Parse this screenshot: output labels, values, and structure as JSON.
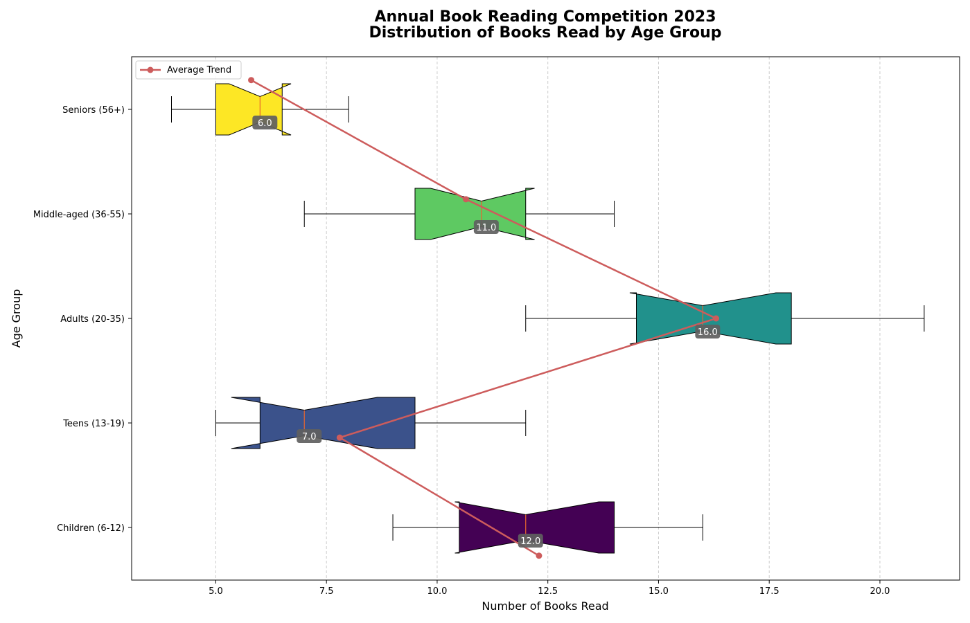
{
  "chart_data": {
    "type": "boxplot",
    "orientation": "horizontal",
    "notched": true,
    "title": "Annual Book Reading Competition 2023",
    "subtitle": "Distribution of Books Read by Age Group",
    "xlabel": "Number of Books Read",
    "ylabel": "Age Group",
    "xlim": [
      3.1,
      21.8
    ],
    "xticks": [
      5.0,
      7.5,
      10.0,
      12.5,
      15.0,
      17.5,
      20.0
    ],
    "xtick_labels": [
      "5.0",
      "7.5",
      "10.0",
      "12.5",
      "15.0",
      "17.5",
      "20.0"
    ],
    "grid": "x-dashed",
    "legend_placement": "top-left",
    "categories": [
      "Children (6-12)",
      "Teens (13-19)",
      "Adults (20-35)",
      "Middle-aged (36-55)",
      "Seniors (56+)"
    ],
    "boxes": [
      {
        "category": "Children (6-12)",
        "whisker_low": 9.0,
        "q1": 10.5,
        "median": 12.0,
        "q3": 14.0,
        "whisker_high": 16.0,
        "notch_low": 10.4,
        "notch_high": 13.65,
        "median_label": "12.0",
        "color": "#440154"
      },
      {
        "category": "Teens (13-19)",
        "whisker_low": 5.0,
        "q1": 6.0,
        "median": 7.0,
        "q3": 9.5,
        "whisker_high": 12.0,
        "notch_low": 5.35,
        "notch_high": 8.65,
        "median_label": "7.0",
        "color": "#3b528b"
      },
      {
        "category": "Adults (20-35)",
        "whisker_low": 12.0,
        "q1": 14.5,
        "median": 16.0,
        "q3": 18.0,
        "whisker_high": 21.0,
        "notch_low": 14.35,
        "notch_high": 17.65,
        "median_label": "16.0",
        "color": "#21918c"
      },
      {
        "category": "Middle-aged (36-55)",
        "whisker_low": 7.0,
        "q1": 9.5,
        "median": 11.0,
        "q3": 12.0,
        "whisker_high": 14.0,
        "notch_low": 9.85,
        "notch_high": 12.2,
        "median_label": "11.0",
        "color": "#5ec962"
      },
      {
        "category": "Seniors (56+)",
        "whisker_low": 4.0,
        "q1": 5.0,
        "median": 6.0,
        "q3": 6.5,
        "whisker_high": 8.0,
        "notch_low": 5.3,
        "notch_high": 6.7,
        "median_label": "6.0",
        "color": "#fde725"
      }
    ],
    "series": [
      {
        "name": "Average Trend",
        "color": "#cd5c5c",
        "values": [
          12.3,
          7.8,
          16.3,
          10.65,
          5.8
        ],
        "offsets": [
          -0.27,
          -0.14,
          0.0,
          0.14,
          0.28
        ]
      }
    ],
    "median_line_color": "#e8662e"
  }
}
